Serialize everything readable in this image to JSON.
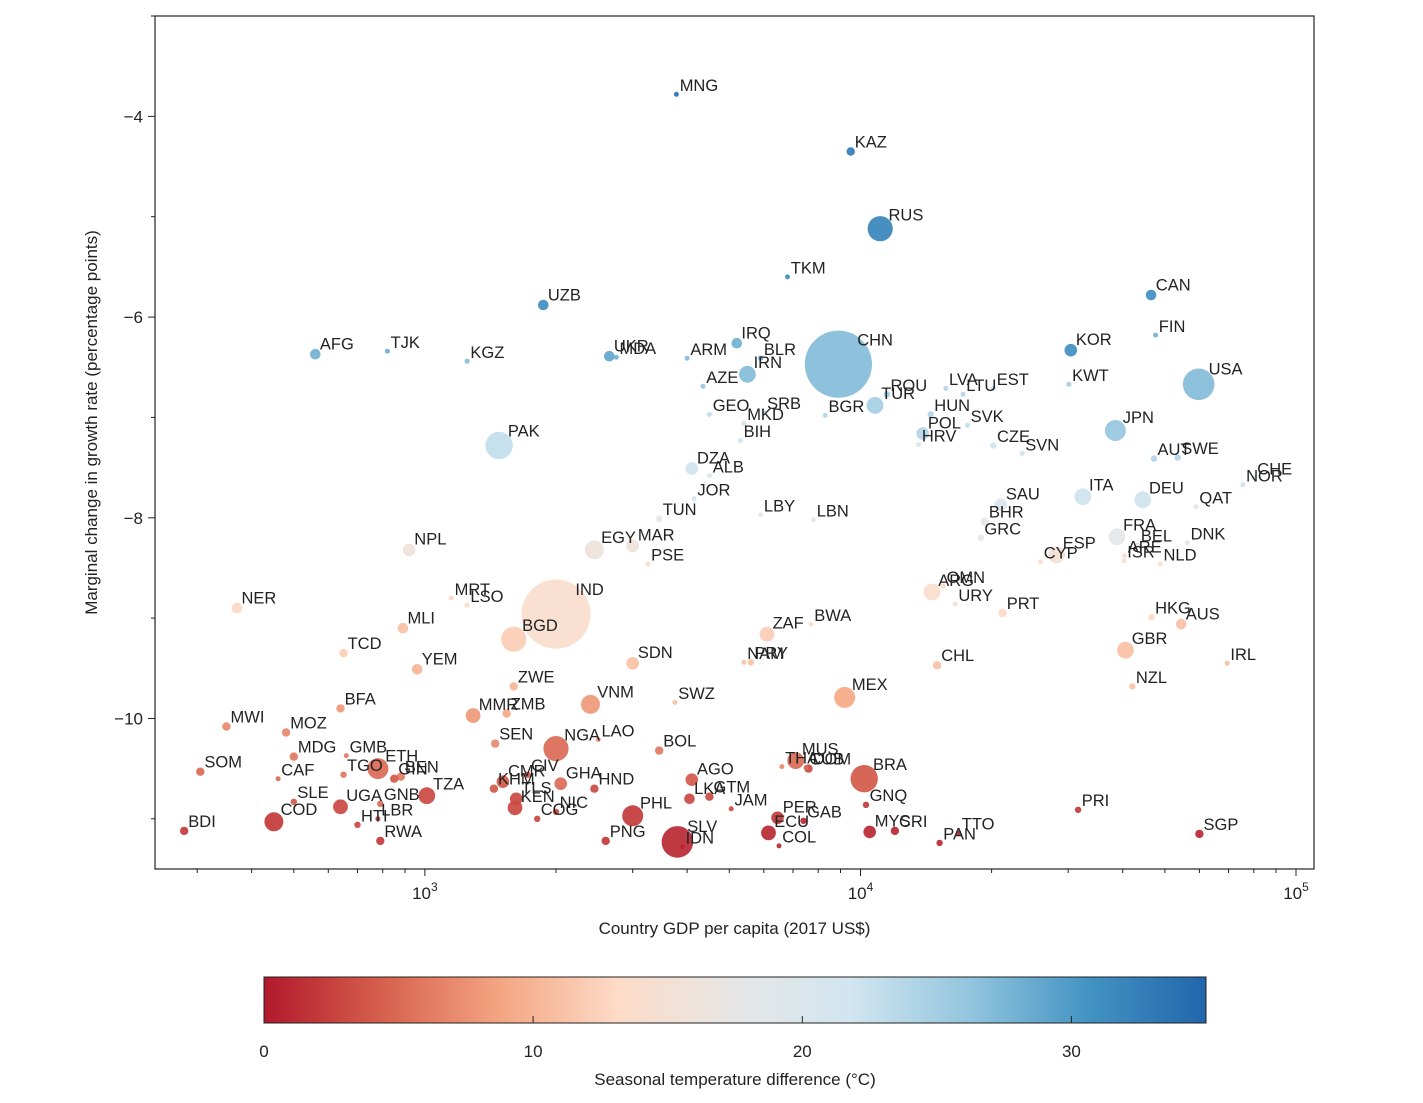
{
  "chart_data": {
    "type": "scatter",
    "x_scale": "log",
    "x_tick_labels": [
      "10^3",
      "10^4",
      "10^5"
    ],
    "x_ticks": [
      1000,
      10000,
      100000
    ],
    "xlim": [
      240,
      110000
    ],
    "ylim": [
      -11.5,
      -3.0
    ],
    "y_ticks": [
      -4,
      -6,
      -8,
      -10
    ],
    "y_tick_labels": [
      "−4",
      "−6",
      "−8",
      "−10"
    ],
    "xlabel": "Country GDP per capita (2017 US$)",
    "ylabel": "Marginal change in growth rate (percentage points)",
    "grid": false,
    "colorbar": {
      "label": "Seasonal temperature difference (°C)",
      "min": 0,
      "max": 35,
      "ticks": [
        0,
        10,
        20,
        30
      ],
      "tick_labels": [
        "0",
        "10",
        "20",
        "30"
      ],
      "colors": [
        "#b2182b",
        "#d6604d",
        "#f4a582",
        "#fddbc7",
        "#e6e6e6",
        "#d1e5f0",
        "#92c5de",
        "#4393c3",
        "#2166ac"
      ]
    },
    "points": [
      {
        "code": "MNG",
        "gdp": 3780,
        "y": -3.78,
        "t": 34,
        "s": 2
      },
      {
        "code": "KAZ",
        "gdp": 9500,
        "y": -4.35,
        "t": 33,
        "s": 4
      },
      {
        "code": "RUS",
        "gdp": 11100,
        "y": -5.12,
        "t": 32,
        "s": 12
      },
      {
        "code": "TKM",
        "gdp": 6800,
        "y": -5.6,
        "t": 31,
        "s": 2
      },
      {
        "code": "CAN",
        "gdp": 46500,
        "y": -5.78,
        "t": 31,
        "s": 5
      },
      {
        "code": "UZB",
        "gdp": 1870,
        "y": -5.88,
        "t": 31,
        "s": 5
      },
      {
        "code": "FIN",
        "gdp": 47600,
        "y": -6.18,
        "t": 28,
        "s": 2
      },
      {
        "code": "IRQ",
        "gdp": 5200,
        "y": -6.26,
        "t": 28,
        "s": 5
      },
      {
        "code": "KOR",
        "gdp": 30400,
        "y": -6.33,
        "t": 31,
        "s": 6
      },
      {
        "code": "AFG",
        "gdp": 560,
        "y": -6.37,
        "t": 28,
        "s": 5
      },
      {
        "code": "TJK",
        "gdp": 820,
        "y": -6.34,
        "t": 28,
        "s": 2
      },
      {
        "code": "KGZ",
        "gdp": 1250,
        "y": -6.44,
        "t": 27,
        "s": 2
      },
      {
        "code": "UKR",
        "gdp": 2650,
        "y": -6.39,
        "t": 29,
        "s": 5
      },
      {
        "code": "MDA",
        "gdp": 2750,
        "y": -6.4,
        "t": 28,
        "s": 2
      },
      {
        "code": "ARM",
        "gdp": 4000,
        "y": -6.41,
        "t": 27,
        "s": 1.5
      },
      {
        "code": "BLR",
        "gdp": 5900,
        "y": -6.41,
        "t": 29,
        "s": 2
      },
      {
        "code": "CHN",
        "gdp": 8900,
        "y": -6.47,
        "t": 27,
        "s": 32
      },
      {
        "code": "AZE",
        "gdp": 4350,
        "y": -6.69,
        "t": 26,
        "s": 2
      },
      {
        "code": "IRN",
        "gdp": 5500,
        "y": -6.57,
        "t": 27,
        "s": 8
      },
      {
        "code": "ROU",
        "gdp": 11500,
        "y": -6.77,
        "t": 25,
        "s": 3
      },
      {
        "code": "LVA",
        "gdp": 15700,
        "y": -6.71,
        "t": 24,
        "s": 1.5
      },
      {
        "code": "LTU",
        "gdp": 17200,
        "y": -6.77,
        "t": 24,
        "s": 1.5
      },
      {
        "code": "EST",
        "gdp": 20200,
        "y": -6.71,
        "t": 23,
        "s": 1.5
      },
      {
        "code": "KWT",
        "gdp": 30100,
        "y": -6.67,
        "t": 25,
        "s": 1.5
      },
      {
        "code": "USA",
        "gdp": 59800,
        "y": -6.67,
        "t": 27,
        "s": 15
      },
      {
        "code": "GEO",
        "gdp": 4500,
        "y": -6.97,
        "t": 23,
        "s": 2
      },
      {
        "code": "BGR",
        "gdp": 8300,
        "y": -6.98,
        "t": 24,
        "s": 2
      },
      {
        "code": "TUR",
        "gdp": 10800,
        "y": -6.88,
        "t": 25,
        "s": 8
      },
      {
        "code": "HUN",
        "gdp": 14500,
        "y": -6.97,
        "t": 24,
        "s": 3
      },
      {
        "code": "SVK",
        "gdp": 17600,
        "y": -7.08,
        "t": 23,
        "s": 2
      },
      {
        "code": "MKD",
        "gdp": 5400,
        "y": -7.06,
        "t": 22,
        "s": 1.5
      },
      {
        "code": "SRB",
        "gdp": 6000,
        "y": -6.95,
        "t": 23,
        "s": 2
      },
      {
        "code": "JPN",
        "gdp": 38500,
        "y": -7.13,
        "t": 26,
        "s": 10
      },
      {
        "code": "BIH",
        "gdp": 5300,
        "y": -7.23,
        "t": 22,
        "s": 1.5
      },
      {
        "code": "POL",
        "gdp": 13900,
        "y": -7.16,
        "t": 24,
        "s": 6
      },
      {
        "code": "CZE",
        "gdp": 20200,
        "y": -7.28,
        "t": 22,
        "s": 3
      },
      {
        "code": "SVN",
        "gdp": 23500,
        "y": -7.36,
        "t": 22,
        "s": 1.5
      },
      {
        "code": "PAK",
        "gdp": 1480,
        "y": -7.28,
        "t": 23,
        "s": 13
      },
      {
        "code": "HRV",
        "gdp": 13600,
        "y": -7.27,
        "t": 21,
        "s": 1.5
      },
      {
        "code": "AUT",
        "gdp": 47200,
        "y": -7.41,
        "t": 24,
        "s": 3
      },
      {
        "code": "SWE",
        "gdp": 53500,
        "y": -7.4,
        "t": 24,
        "s": 3
      },
      {
        "code": "DZA",
        "gdp": 4100,
        "y": -7.51,
        "t": 22,
        "s": 6
      },
      {
        "code": "ALB",
        "gdp": 4500,
        "y": -7.58,
        "t": 20,
        "s": 1.5
      },
      {
        "code": "CHE",
        "gdp": 80100,
        "y": -7.6,
        "t": 22,
        "s": 2
      },
      {
        "code": "NOR",
        "gdp": 75500,
        "y": -7.67,
        "t": 22,
        "s": 2
      },
      {
        "code": "JOR",
        "gdp": 4150,
        "y": -7.81,
        "t": 21,
        "s": 2
      },
      {
        "code": "SAU",
        "gdp": 21000,
        "y": -7.87,
        "t": 20,
        "s": 6
      },
      {
        "code": "ITA",
        "gdp": 32400,
        "y": -7.79,
        "t": 22,
        "s": 8
      },
      {
        "code": "DEU",
        "gdp": 44500,
        "y": -7.82,
        "t": 22,
        "s": 8
      },
      {
        "code": "QAT",
        "gdp": 59000,
        "y": -7.89,
        "t": 19,
        "s": 1.5
      },
      {
        "code": "LBY",
        "gdp": 5900,
        "y": -7.97,
        "t": 18,
        "s": 2
      },
      {
        "code": "LBN",
        "gdp": 7800,
        "y": -8.02,
        "t": 17,
        "s": 2
      },
      {
        "code": "TUN",
        "gdp": 3450,
        "y": -8.01,
        "t": 17,
        "s": 3
      },
      {
        "code": "BHR",
        "gdp": 19300,
        "y": -8.04,
        "t": 17,
        "s": 4
      },
      {
        "code": "GRC",
        "gdp": 18900,
        "y": -8.2,
        "t": 19,
        "s": 3
      },
      {
        "code": "FRA",
        "gdp": 38800,
        "y": -8.19,
        "t": 18,
        "s": 8
      },
      {
        "code": "BEL",
        "gdp": 43300,
        "y": -8.27,
        "t": 16,
        "s": 2
      },
      {
        "code": "DNK",
        "gdp": 56300,
        "y": -8.25,
        "t": 18,
        "s": 2
      },
      {
        "code": "NPL",
        "gdp": 920,
        "y": -8.32,
        "t": 16,
        "s": 6
      },
      {
        "code": "MAR",
        "gdp": 3000,
        "y": -8.28,
        "t": 16,
        "s": 6
      },
      {
        "code": "EGY",
        "gdp": 2450,
        "y": -8.32,
        "t": 16,
        "s": 9
      },
      {
        "code": "PSE",
        "gdp": 3250,
        "y": -8.46,
        "t": 15,
        "s": 1.5
      },
      {
        "code": "ESP",
        "gdp": 28200,
        "y": -8.37,
        "t": 15,
        "s": 8
      },
      {
        "code": "CYP",
        "gdp": 25900,
        "y": -8.44,
        "t": 14,
        "s": 1.5
      },
      {
        "code": "ARE",
        "gdp": 40400,
        "y": -8.38,
        "t": 15,
        "s": 2
      },
      {
        "code": "ISR",
        "gdp": 40300,
        "y": -8.43,
        "t": 15,
        "s": 2
      },
      {
        "code": "NLD",
        "gdp": 48800,
        "y": -8.46,
        "t": 15,
        "s": 2
      },
      {
        "code": "ARG",
        "gdp": 14600,
        "y": -8.74,
        "t": 14,
        "s": 8
      },
      {
        "code": "OMN",
        "gdp": 15500,
        "y": -8.68,
        "t": 13,
        "s": 1.5
      },
      {
        "code": "MRT",
        "gdp": 1150,
        "y": -8.8,
        "t": 13,
        "s": 2
      },
      {
        "code": "LSO",
        "gdp": 1250,
        "y": -8.87,
        "t": 13,
        "s": 1.5
      },
      {
        "code": "NER",
        "gdp": 370,
        "y": -8.9,
        "t": 13,
        "s": 5
      },
      {
        "code": "URY",
        "gdp": 16500,
        "y": -8.86,
        "t": 15,
        "s": 1.5
      },
      {
        "code": "PRT",
        "gdp": 21200,
        "y": -8.95,
        "t": 13,
        "s": 4
      },
      {
        "code": "IND",
        "gdp": 2000,
        "y": -8.96,
        "t": 14,
        "s": 33
      },
      {
        "code": "HKG",
        "gdp": 46600,
        "y": -8.99,
        "t": 13,
        "s": 3
      },
      {
        "code": "AUS",
        "gdp": 54500,
        "y": -9.06,
        "t": 11,
        "s": 5
      },
      {
        "code": "BWA",
        "gdp": 7700,
        "y": -9.06,
        "t": 14,
        "s": 2
      },
      {
        "code": "MLI",
        "gdp": 890,
        "y": -9.1,
        "t": 11,
        "s": 5
      },
      {
        "code": "BGD",
        "gdp": 1600,
        "y": -9.21,
        "t": 12,
        "s": 12
      },
      {
        "code": "ZAF",
        "gdp": 6100,
        "y": -9.16,
        "t": 12,
        "s": 7
      },
      {
        "code": "GBR",
        "gdp": 40600,
        "y": -9.32,
        "t": 11,
        "s": 8
      },
      {
        "code": "TCD",
        "gdp": 650,
        "y": -9.35,
        "t": 12,
        "s": 4
      },
      {
        "code": "SDN",
        "gdp": 3000,
        "y": -9.45,
        "t": 11,
        "s": 6
      },
      {
        "code": "PRY",
        "gdp": 5600,
        "y": -9.44,
        "t": 11,
        "s": 3
      },
      {
        "code": "CHL",
        "gdp": 15000,
        "y": -9.47,
        "t": 11,
        "s": 4
      },
      {
        "code": "IRL",
        "gdp": 69500,
        "y": -9.45,
        "t": 11,
        "s": 2
      },
      {
        "code": "YEM",
        "gdp": 960,
        "y": -9.51,
        "t": 10,
        "s": 5
      },
      {
        "code": "NAM",
        "gdp": 5400,
        "y": -9.44,
        "t": 11,
        "s": 2
      },
      {
        "code": "NZL",
        "gdp": 42100,
        "y": -9.68,
        "t": 11,
        "s": 3
      },
      {
        "code": "ZWE",
        "gdp": 1600,
        "y": -9.68,
        "t": 10,
        "s": 4
      },
      {
        "code": "BFA",
        "gdp": 640,
        "y": -9.9,
        "t": 8,
        "s": 4
      },
      {
        "code": "MEX",
        "gdp": 9200,
        "y": -9.79,
        "t": 9,
        "s": 10
      },
      {
        "code": "VNM",
        "gdp": 2400,
        "y": -9.86,
        "t": 8,
        "s": 9
      },
      {
        "code": "SWZ",
        "gdp": 3750,
        "y": -9.84,
        "t": 11,
        "s": 1.5
      },
      {
        "code": "MMR",
        "gdp": 1290,
        "y": -9.97,
        "t": 8,
        "s": 7
      },
      {
        "code": "ZMB",
        "gdp": 1540,
        "y": -9.95,
        "t": 9,
        "s": 4
      },
      {
        "code": "MWI",
        "gdp": 350,
        "y": -10.08,
        "t": 7,
        "s": 4
      },
      {
        "code": "MOZ",
        "gdp": 480,
        "y": -10.14,
        "t": 7,
        "s": 4
      },
      {
        "code": "SEN",
        "gdp": 1450,
        "y": -10.25,
        "t": 7,
        "s": 4
      },
      {
        "code": "LAO",
        "gdp": 2500,
        "y": -10.21,
        "t": 8,
        "s": 1.5
      },
      {
        "code": "NGA",
        "gdp": 2000,
        "y": -10.3,
        "t": 5,
        "s": 12
      },
      {
        "code": "BOL",
        "gdp": 3450,
        "y": -10.32,
        "t": 6,
        "s": 4
      },
      {
        "code": "THA",
        "gdp": 6600,
        "y": -10.48,
        "t": 7,
        "s": 1.5
      },
      {
        "code": "CUB",
        "gdp": 7500,
        "y": -10.49,
        "t": 5,
        "s": 2
      },
      {
        "code": "MDG",
        "gdp": 500,
        "y": -10.38,
        "t": 6,
        "s": 4
      },
      {
        "code": "GMB",
        "gdp": 660,
        "y": -10.37,
        "t": 6,
        "s": 2
      },
      {
        "code": "SOM",
        "gdp": 305,
        "y": -10.53,
        "t": 5,
        "s": 4
      },
      {
        "code": "CAF",
        "gdp": 460,
        "y": -10.6,
        "t": 5,
        "s": 2
      },
      {
        "code": "TGO",
        "gdp": 650,
        "y": -10.56,
        "t": 6,
        "s": 3
      },
      {
        "code": "ETH",
        "gdp": 780,
        "y": -10.5,
        "t": 5,
        "s": 10
      },
      {
        "code": "BEN",
        "gdp": 880,
        "y": -10.58,
        "t": 6,
        "s": 4
      },
      {
        "code": "CMR",
        "gdp": 1510,
        "y": -10.63,
        "t": 4,
        "s": 6
      },
      {
        "code": "CIV",
        "gdp": 1720,
        "y": -10.56,
        "t": 4,
        "s": 3
      },
      {
        "code": "GHA",
        "gdp": 2050,
        "y": -10.65,
        "t": 5,
        "s": 6
      },
      {
        "code": "AGO",
        "gdp": 4100,
        "y": -10.61,
        "t": 4,
        "s": 6
      },
      {
        "code": "MUS",
        "gdp": 7100,
        "y": -10.42,
        "t": 5,
        "s": 8
      },
      {
        "code": "BRA",
        "gdp": 10200,
        "y": -10.6,
        "t": 4,
        "s": 13
      },
      {
        "code": "DOM",
        "gdp": 7600,
        "y": -10.5,
        "t": 3,
        "s": 4
      },
      {
        "code": "HND",
        "gdp": 2450,
        "y": -10.7,
        "t": 3,
        "s": 4
      },
      {
        "code": "GTM",
        "gdp": 4500,
        "y": -10.78,
        "t": 3,
        "s": 4
      },
      {
        "code": "SLE",
        "gdp": 500,
        "y": -10.83,
        "t": 4,
        "s": 3
      },
      {
        "code": "GNB",
        "gdp": 790,
        "y": -10.85,
        "t": 5,
        "s": 3
      },
      {
        "code": "GIN",
        "gdp": 850,
        "y": -10.6,
        "t": 4,
        "s": 4
      },
      {
        "code": "KHM",
        "gdp": 1440,
        "y": -10.7,
        "t": 4,
        "s": 4
      },
      {
        "code": "TZA",
        "gdp": 1010,
        "y": -10.77,
        "t": 3,
        "s": 8
      },
      {
        "code": "LKA",
        "gdp": 4050,
        "y": -10.8,
        "t": 3,
        "s": 5
      },
      {
        "code": "UGA",
        "gdp": 640,
        "y": -10.88,
        "t": 3,
        "s": 7
      },
      {
        "code": "TLS",
        "gdp": 1620,
        "y": -10.8,
        "t": 3,
        "s": 6
      },
      {
        "code": "NIC",
        "gdp": 2000,
        "y": -10.93,
        "t": 3,
        "s": 3
      },
      {
        "code": "PHL",
        "gdp": 3000,
        "y": -10.97,
        "t": 2,
        "s": 10
      },
      {
        "code": "KEN",
        "gdp": 1610,
        "y": -10.89,
        "t": 3,
        "s": 7
      },
      {
        "code": "PER",
        "gdp": 6450,
        "y": -10.99,
        "t": 2,
        "s": 6
      },
      {
        "code": "GNQ",
        "gdp": 10300,
        "y": -10.86,
        "t": 2,
        "s": 3
      },
      {
        "code": "JAM",
        "gdp": 5050,
        "y": -10.9,
        "t": 3,
        "s": 1.5
      },
      {
        "code": "PRI",
        "gdp": 31600,
        "y": -10.91,
        "t": 2,
        "s": 3
      },
      {
        "code": "COD",
        "gdp": 450,
        "y": -11.03,
        "t": 2,
        "s": 9
      },
      {
        "code": "HTI",
        "gdp": 700,
        "y": -11.06,
        "t": 3,
        "s": 3
      },
      {
        "code": "COG",
        "gdp": 1810,
        "y": -11.0,
        "t": 3,
        "s": 3
      },
      {
        "code": "BDI",
        "gdp": 280,
        "y": -11.12,
        "t": 2,
        "s": 4
      },
      {
        "code": "LBR",
        "gdp": 780,
        "y": -11.0,
        "t": 2,
        "s": 2
      },
      {
        "code": "PNG",
        "gdp": 2600,
        "y": -11.22,
        "t": 2,
        "s": 4
      },
      {
        "code": "SLV",
        "gdp": 3800,
        "y": -11.23,
        "t": 1,
        "s": 15
      },
      {
        "code": "ECU",
        "gdp": 6150,
        "y": -11.14,
        "t": 1,
        "s": 7
      },
      {
        "code": "GAB",
        "gdp": 7400,
        "y": -11.02,
        "t": 1,
        "s": 3
      },
      {
        "code": "MYS",
        "gdp": 10500,
        "y": -11.13,
        "t": 1,
        "s": 6
      },
      {
        "code": "CRI",
        "gdp": 12000,
        "y": -11.12,
        "t": 1,
        "s": 4
      },
      {
        "code": "TTO",
        "gdp": 16800,
        "y": -11.14,
        "t": 1,
        "s": 2
      },
      {
        "code": "RWA",
        "gdp": 790,
        "y": -11.22,
        "t": 2,
        "s": 4
      },
      {
        "code": "SGP",
        "gdp": 60000,
        "y": -11.15,
        "t": 1,
        "s": 4
      },
      {
        "code": "COL",
        "gdp": 6500,
        "y": -11.27,
        "t": 1,
        "s": 2
      },
      {
        "code": "PAN",
        "gdp": 15200,
        "y": -11.24,
        "t": 1,
        "s": 3
      },
      {
        "code": "IDN",
        "gdp": 3900,
        "y": -11.28,
        "t": 1,
        "s": 1.5
      }
    ]
  }
}
